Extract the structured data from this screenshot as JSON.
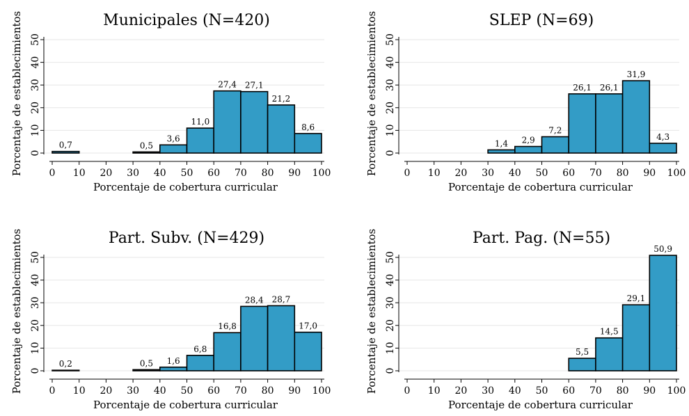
{
  "chart_data": [
    {
      "type": "bar",
      "title": "Municipales (N=420)",
      "xlabel": "Porcentaje de cobertura curricular",
      "ylabel": "Porcentaje de establecimientos",
      "xlim": [
        0,
        100
      ],
      "ylim": [
        0,
        50
      ],
      "xticks": [
        "0",
        "10",
        "20",
        "30",
        "40",
        "50",
        "60",
        "70",
        "80",
        "90",
        "100"
      ],
      "yticks": [
        "0",
        "10",
        "20",
        "30",
        "40",
        "50"
      ],
      "grid": "horizontal",
      "bins": [
        {
          "start": 0,
          "end": 10,
          "value": 0.7,
          "label": "0,7"
        },
        {
          "start": 30,
          "end": 40,
          "value": 0.5,
          "label": "0,5"
        },
        {
          "start": 40,
          "end": 50,
          "value": 3.6,
          "label": "3,6"
        },
        {
          "start": 50,
          "end": 60,
          "value": 11.0,
          "label": "11,0"
        },
        {
          "start": 60,
          "end": 70,
          "value": 27.4,
          "label": "27,4"
        },
        {
          "start": 70,
          "end": 80,
          "value": 27.1,
          "label": "27,1"
        },
        {
          "start": 80,
          "end": 90,
          "value": 21.2,
          "label": "21,2"
        },
        {
          "start": 90,
          "end": 100,
          "value": 8.6,
          "label": "8,6"
        }
      ]
    },
    {
      "type": "bar",
      "title": "SLEP (N=69)",
      "xlabel": "Porcentaje de cobertura curricular",
      "ylabel": "Porcentaje de establecimientos",
      "xlim": [
        0,
        100
      ],
      "ylim": [
        0,
        50
      ],
      "xticks": [
        "0",
        "10",
        "20",
        "30",
        "40",
        "50",
        "60",
        "70",
        "80",
        "90",
        "100"
      ],
      "yticks": [
        "0",
        "10",
        "20",
        "30",
        "40",
        "50"
      ],
      "grid": "horizontal",
      "bins": [
        {
          "start": 30,
          "end": 40,
          "value": 1.4,
          "label": "1,4"
        },
        {
          "start": 40,
          "end": 50,
          "value": 2.9,
          "label": "2,9"
        },
        {
          "start": 50,
          "end": 60,
          "value": 7.2,
          "label": "7,2"
        },
        {
          "start": 60,
          "end": 70,
          "value": 26.1,
          "label": "26,1"
        },
        {
          "start": 70,
          "end": 80,
          "value": 26.1,
          "label": "26,1"
        },
        {
          "start": 80,
          "end": 90,
          "value": 31.9,
          "label": "31,9"
        },
        {
          "start": 90,
          "end": 100,
          "value": 4.3,
          "label": "4,3"
        }
      ]
    },
    {
      "type": "bar",
      "title": "Part. Subv. (N=429)",
      "xlabel": "Porcentaje de cobertura curricular",
      "ylabel": "Porcentaje de establecimientos",
      "xlim": [
        0,
        100
      ],
      "ylim": [
        0,
        50
      ],
      "xticks": [
        "0",
        "10",
        "20",
        "30",
        "40",
        "50",
        "60",
        "70",
        "80",
        "90",
        "100"
      ],
      "yticks": [
        "0",
        "10",
        "20",
        "30",
        "40",
        "50"
      ],
      "grid": "horizontal",
      "bins": [
        {
          "start": 0,
          "end": 10,
          "value": 0.2,
          "label": "0,2"
        },
        {
          "start": 30,
          "end": 40,
          "value": 0.5,
          "label": "0,5"
        },
        {
          "start": 40,
          "end": 50,
          "value": 1.6,
          "label": "1,6"
        },
        {
          "start": 50,
          "end": 60,
          "value": 6.8,
          "label": "6,8"
        },
        {
          "start": 60,
          "end": 70,
          "value": 16.8,
          "label": "16,8"
        },
        {
          "start": 70,
          "end": 80,
          "value": 28.4,
          "label": "28,4"
        },
        {
          "start": 80,
          "end": 90,
          "value": 28.7,
          "label": "28,7"
        },
        {
          "start": 90,
          "end": 100,
          "value": 17.0,
          "label": "17,0"
        }
      ]
    },
    {
      "type": "bar",
      "title": "Part. Pag. (N=55)",
      "xlabel": "Porcentaje de cobertura curricular",
      "ylabel": "Porcentaje de establecimientos",
      "xlim": [
        0,
        100
      ],
      "ylim": [
        0,
        50
      ],
      "xticks": [
        "0",
        "10",
        "20",
        "30",
        "40",
        "50",
        "60",
        "70",
        "80",
        "90",
        "100"
      ],
      "yticks": [
        "0",
        "10",
        "20",
        "30",
        "40",
        "50"
      ],
      "grid": "horizontal",
      "bins": [
        {
          "start": 60,
          "end": 70,
          "value": 5.5,
          "label": "5,5"
        },
        {
          "start": 70,
          "end": 80,
          "value": 14.5,
          "label": "14,5"
        },
        {
          "start": 80,
          "end": 90,
          "value": 29.1,
          "label": "29,1"
        },
        {
          "start": 90,
          "end": 100,
          "value": 50.9,
          "label": "50,9"
        }
      ]
    }
  ],
  "colors": {
    "bar_fill": "#339cc6",
    "bar_stroke": "#000000",
    "grid": "#e6e6e6",
    "axis": "#000000",
    "background": "#ffffff"
  }
}
